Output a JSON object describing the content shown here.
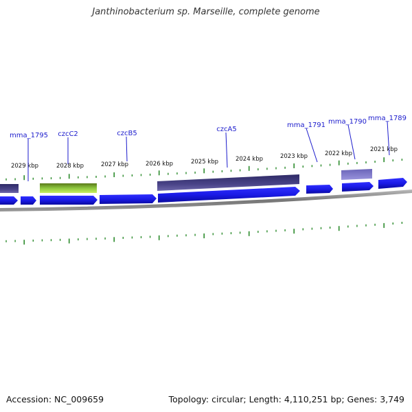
{
  "header": {
    "title": "Janthinobacterium sp. Marseille, complete genome"
  },
  "footer": {
    "accession": "Accession: NC_009659",
    "summary": "Topology: circular; Length: 4,110,251 bp; Genes: 3,749"
  },
  "colors": {
    "forward_gene": "#1a1ae6",
    "feature_dark": "#4a4488",
    "feature_light": "#8079cc",
    "feature_highlight": "#8dc63f",
    "backbone": "#888888",
    "tick": "#2a8a2a",
    "label": "#1a1acc"
  },
  "ruler": {
    "labels": [
      "2029 kbp",
      "2028 kbp",
      "2027 kbp",
      "2026 kbp",
      "2025 kbp",
      "2024 kbp",
      "2023 kbp",
      "2022 kbp",
      "2021 kbp"
    ]
  },
  "genes": [
    {
      "label": "mma_1795"
    },
    {
      "label": "czcC2"
    },
    {
      "label": "czcB5"
    },
    {
      "label": "czcA5"
    },
    {
      "label": "mma_1791"
    },
    {
      "label": "mma_1790"
    },
    {
      "label": "mma_1789"
    }
  ]
}
